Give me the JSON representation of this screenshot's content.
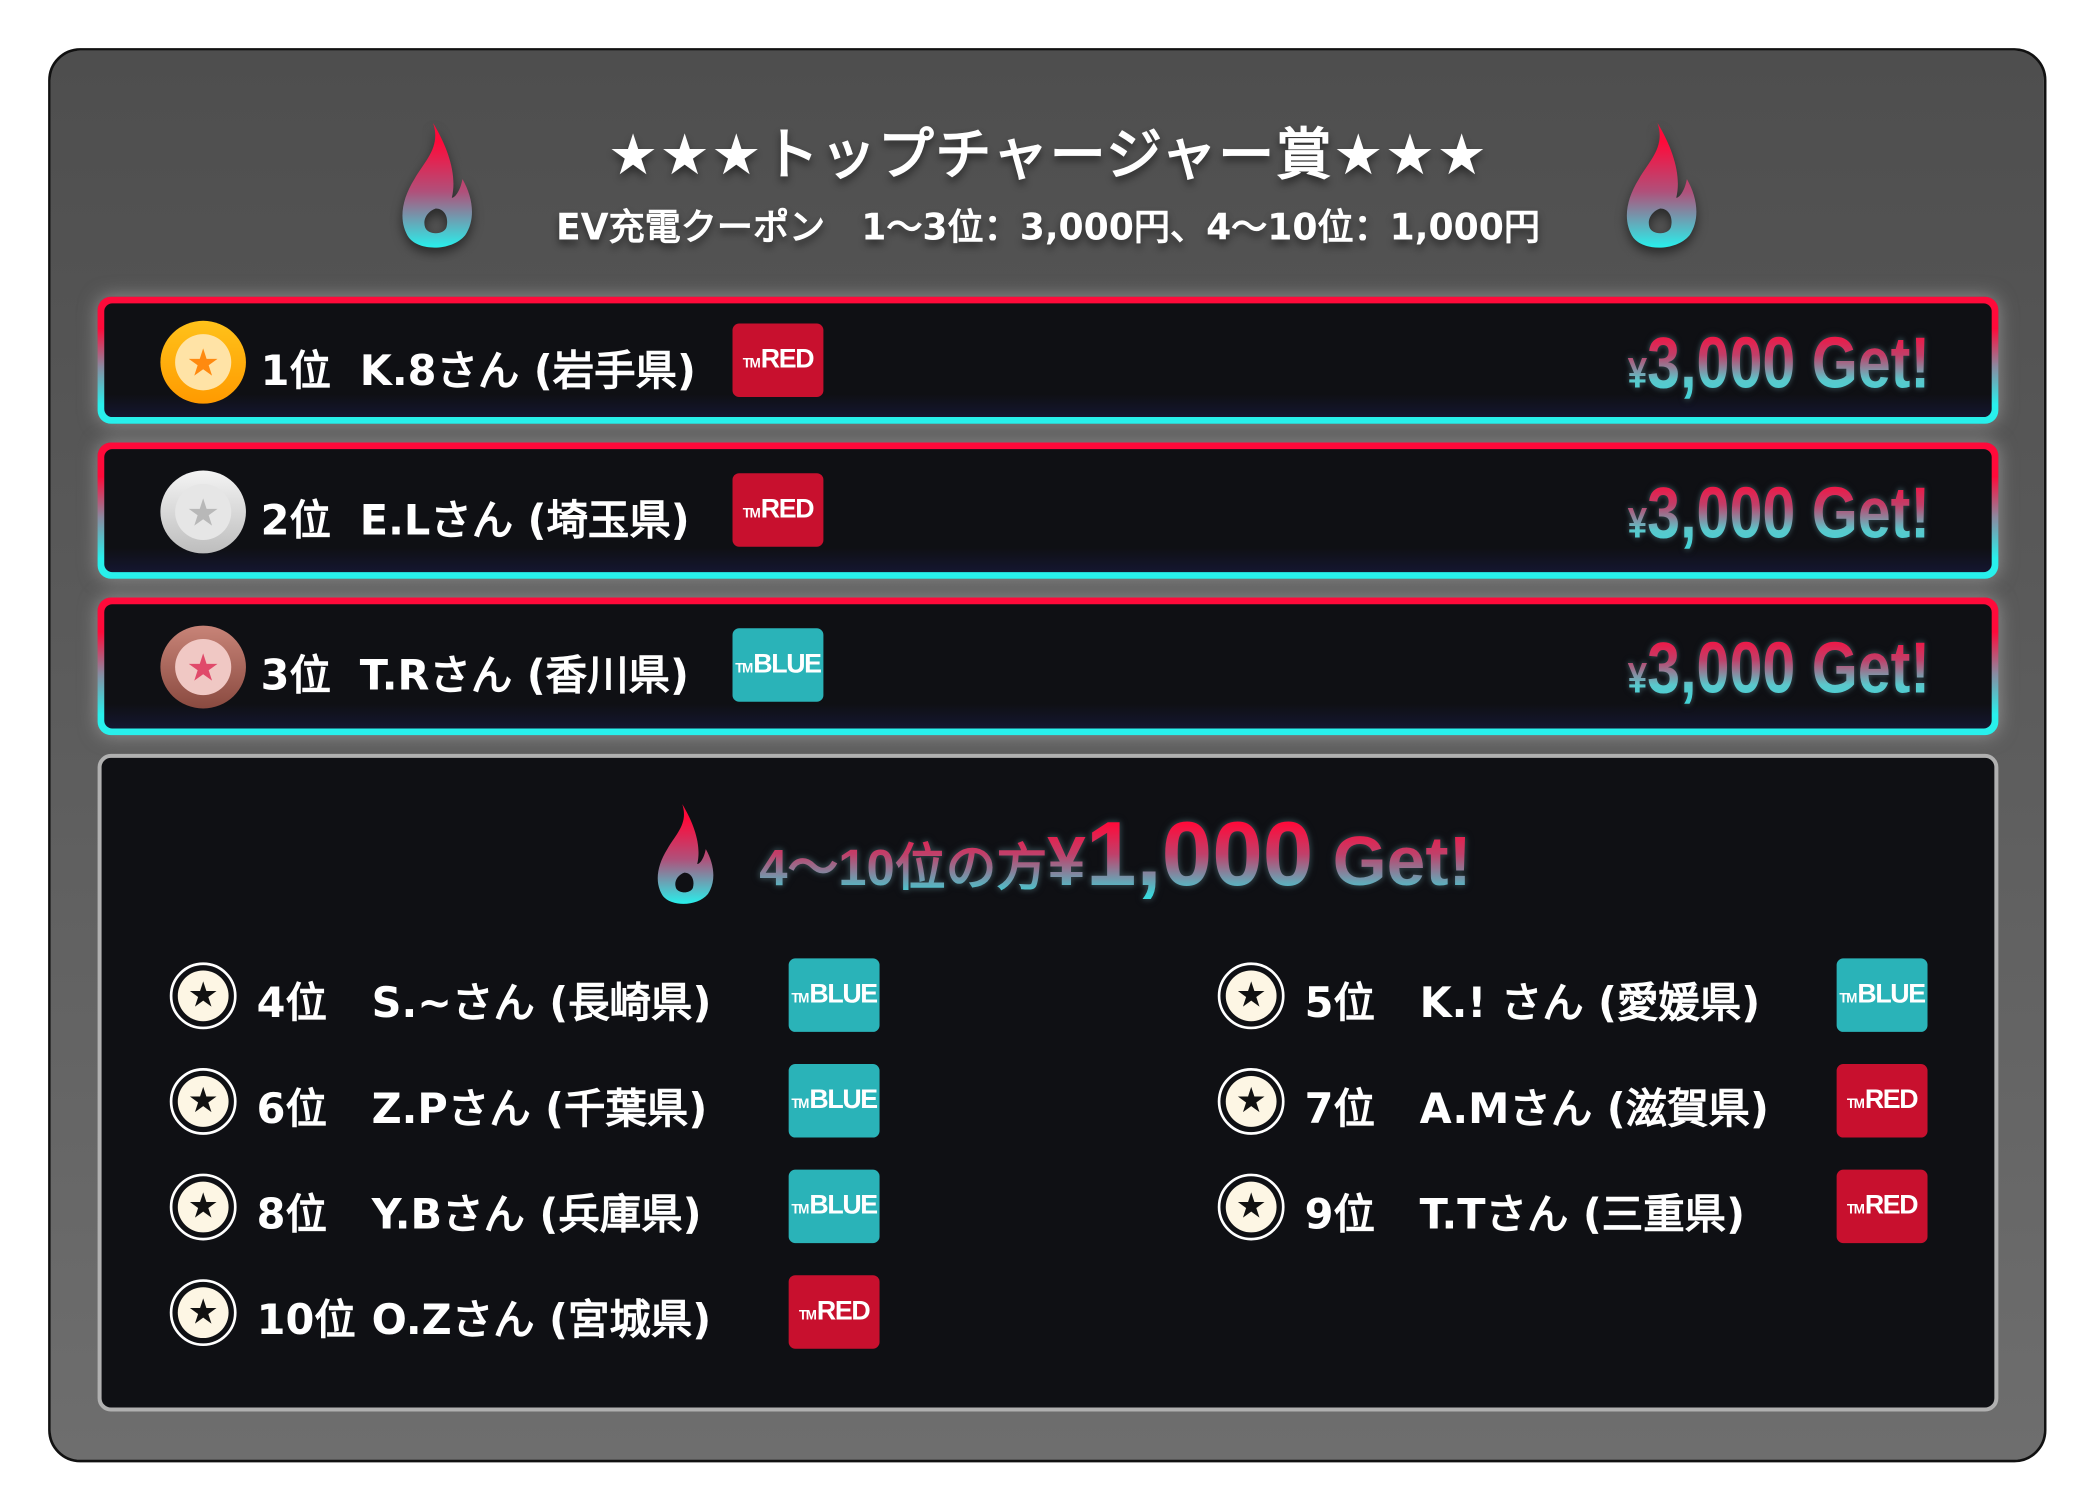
{
  "title": "★★★トップチャージャー賞★★★",
  "subtitle": "EV充電クーポン　1〜3位：3,000円、4〜10位：1,000円",
  "colors": {
    "red": "#ff0a3a",
    "cyan": "#28f0ec",
    "badge_red": "#c8102e",
    "badge_blue": "#2ab3b8",
    "panel": "#0f1014"
  },
  "top_ranks": [
    {
      "rank": "1位",
      "name": "K.8さん (岩手県)",
      "badge_tm": "TM",
      "badge": "RED",
      "badge_color": "red",
      "medal": "gold",
      "yen": "¥",
      "amount": "3,000 Get!"
    },
    {
      "rank": "2位",
      "name": "E.Lさん (埼玉県)",
      "badge_tm": "TM",
      "badge": "RED",
      "badge_color": "red",
      "medal": "silver",
      "yen": "¥",
      "amount": "3,000 Get!"
    },
    {
      "rank": "3位",
      "name": "T.Rさん (香川県)",
      "badge_tm": "TM",
      "badge": "BLUE",
      "badge_color": "blue",
      "medal": "bronze",
      "yen": "¥",
      "amount": "3,000 Get!"
    }
  ],
  "lower": {
    "heading_prefix": "4〜10位の方",
    "heading_yen": "¥",
    "heading_amount": "1,000",
    "heading_suffix": " Get!",
    "entries": [
      {
        "rank": "4位",
        "name": "S.~さん (長崎県)",
        "badge_tm": "TM",
        "badge": "BLUE"
      },
      {
        "rank": "5位",
        "name": "K.! さん (愛媛県)",
        "badge_tm": "TM",
        "badge": "BLUE"
      },
      {
        "rank": "6位",
        "name": "Z.Pさん (千葉県)",
        "badge_tm": "TM",
        "badge": "BLUE"
      },
      {
        "rank": "7位",
        "name": "A.Mさん (滋賀県)",
        "badge_tm": "TM",
        "badge": "RED"
      },
      {
        "rank": "8位",
        "name": "Y.Bさん (兵庫県)",
        "badge_tm": "TM",
        "badge": "BLUE"
      },
      {
        "rank": "9位",
        "name": "T.Tさん (三重県)",
        "badge_tm": "TM",
        "badge": "RED"
      },
      {
        "rank": "10位",
        "name": "O.Zさん (宮城県)",
        "badge_tm": "TM",
        "badge": "RED"
      }
    ]
  }
}
